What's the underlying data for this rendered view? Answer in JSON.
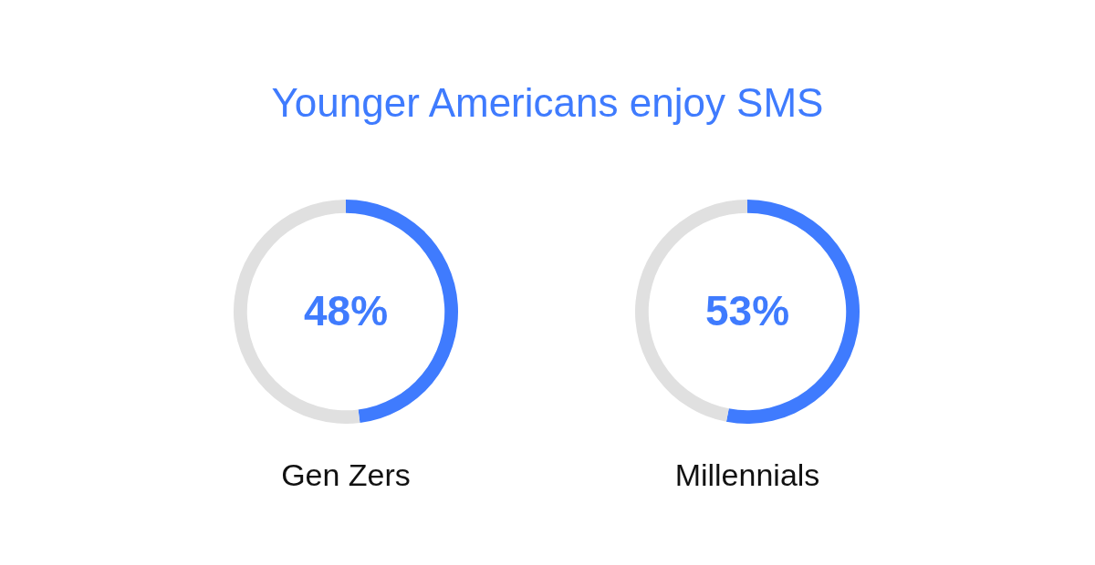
{
  "chart_data": [
    {
      "type": "donut",
      "title": "Younger Americans enjoy SMS",
      "xlabel": "Gen Zers",
      "categories": [
        null,
        null
      ],
      "values": [
        48,
        52
      ],
      "colors": [
        "#3f7bfe",
        "#e0e0e0"
      ],
      "annotations": [
        "48%"
      ]
    },
    {
      "type": "donut",
      "xlabel": "Millennials",
      "categories": [
        null,
        null
      ],
      "values": [
        53,
        47
      ],
      "colors": [
        "#3f7bfe",
        "#e0e0e0"
      ],
      "annotations": [
        "53%"
      ]
    }
  ]
}
